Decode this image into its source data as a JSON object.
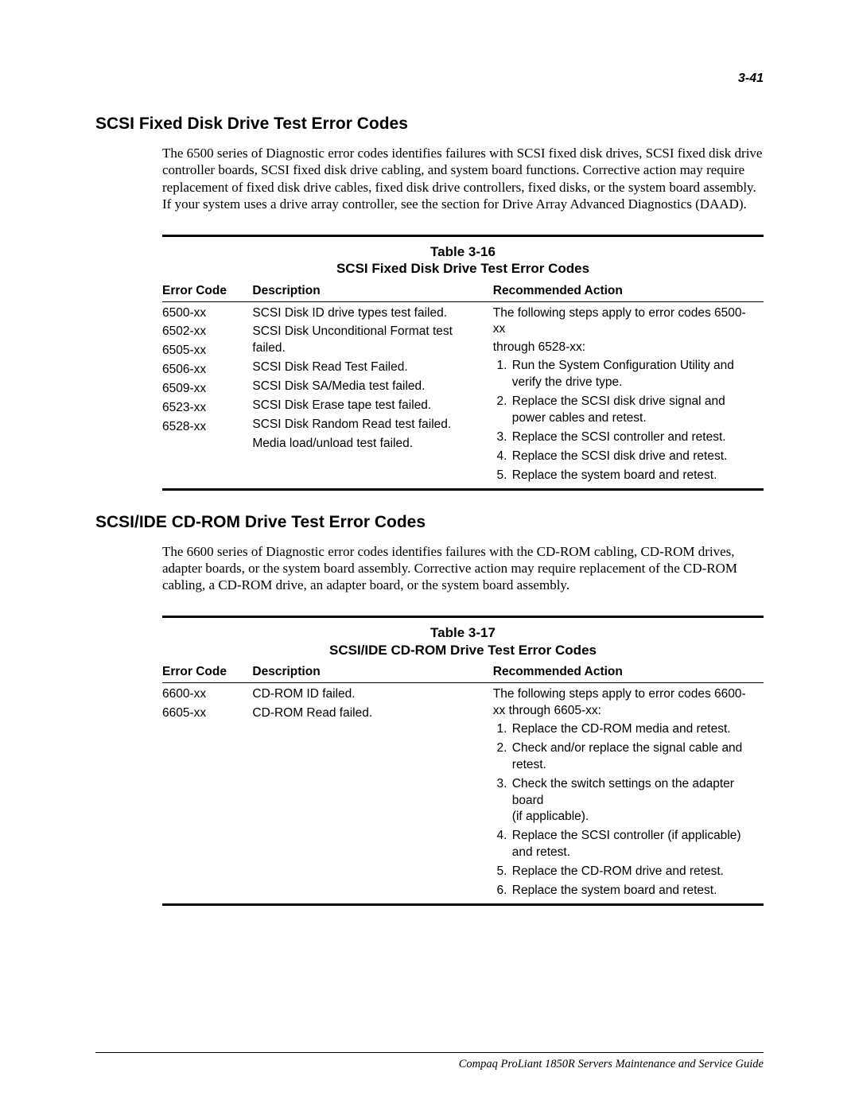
{
  "page_number": "3-41",
  "footer": "Compaq ProLiant 1850R Servers Maintenance and Service Guide",
  "typography": {
    "heading_font": "Arial",
    "heading_size_pt": 16,
    "body_font": "Times New Roman",
    "body_size_pt": 13,
    "table_font": "Arial",
    "table_size_pt": 11.5,
    "text_color": "#000000",
    "background_color": "#ffffff"
  },
  "section1": {
    "heading": "SCSI Fixed Disk Drive Test Error Codes",
    "paragraph": "The 6500 series of Diagnostic error codes identifies failures with SCSI fixed disk drives, SCSI fixed disk drive controller boards, SCSI fixed disk drive cabling, and system board functions. Corrective action may require replacement of fixed disk drive cables, fixed disk drive controllers, fixed disks, or the system board assembly. If your system uses a drive array controller, see the section for Drive Array Advanced Diagnostics (DAAD).",
    "table": {
      "number": "Table 3-16",
      "title": "SCSI Fixed Disk Drive Test Error Codes",
      "columns": [
        "Error Code",
        "Description",
        "Recommended Action"
      ],
      "col_widths_pct": [
        15,
        40,
        45
      ],
      "error_codes": [
        "6500-xx",
        "6502-xx",
        "6505-xx",
        "6506-xx",
        "6509-xx",
        "6523-xx",
        "6528-xx"
      ],
      "descriptions": [
        "SCSI Disk ID drive types test failed.",
        "SCSI Disk Unconditional Format test failed.",
        "SCSI Disk Read Test Failed.",
        "SCSI Disk SA/Media test failed.",
        "SCSI Disk Erase tape test failed.",
        "SCSI Disk Random Read test failed.",
        "Media load/unload test failed."
      ],
      "action_intro1": "The following steps apply to error codes 6500-xx",
      "action_intro2": "through 6528-xx:",
      "actions": [
        "Run the System Configuration Utility and verify the drive type.",
        "Replace the SCSI disk drive signal and power cables and retest.",
        "Replace the SCSI controller and retest.",
        "Replace the SCSI disk drive and retest.",
        "Replace the system board and retest."
      ]
    }
  },
  "section2": {
    "heading": "SCSI/IDE CD-ROM Drive Test Error Codes",
    "paragraph": "The 6600 series of Diagnostic error codes identifies failures with the CD-ROM cabling, CD-ROM drives, adapter boards, or the system board assembly. Corrective action may require replacement of the CD-ROM cabling, a CD-ROM drive, an adapter board, or the system board assembly.",
    "table": {
      "number": "Table 3-17",
      "title": "SCSI/IDE CD-ROM Drive Test Error Codes",
      "columns": [
        "Error Code",
        "Description",
        "Recommended Action"
      ],
      "col_widths_pct": [
        15,
        40,
        45
      ],
      "error_codes": [
        "6600-xx",
        "6605-xx"
      ],
      "descriptions": [
        "CD-ROM ID failed.",
        "CD-ROM Read failed."
      ],
      "action_intro1": "The following steps apply to error codes 6600-xx through 6605-xx:",
      "actions": [
        "Replace the CD-ROM media and retest.",
        "Check and/or replace the signal cable and retest.",
        "Check the switch settings on the adapter board\n(if applicable).",
        "Replace the SCSI controller (if applicable)\nand retest.",
        "Replace the CD-ROM drive and retest.",
        "Replace the system board and retest."
      ]
    }
  }
}
